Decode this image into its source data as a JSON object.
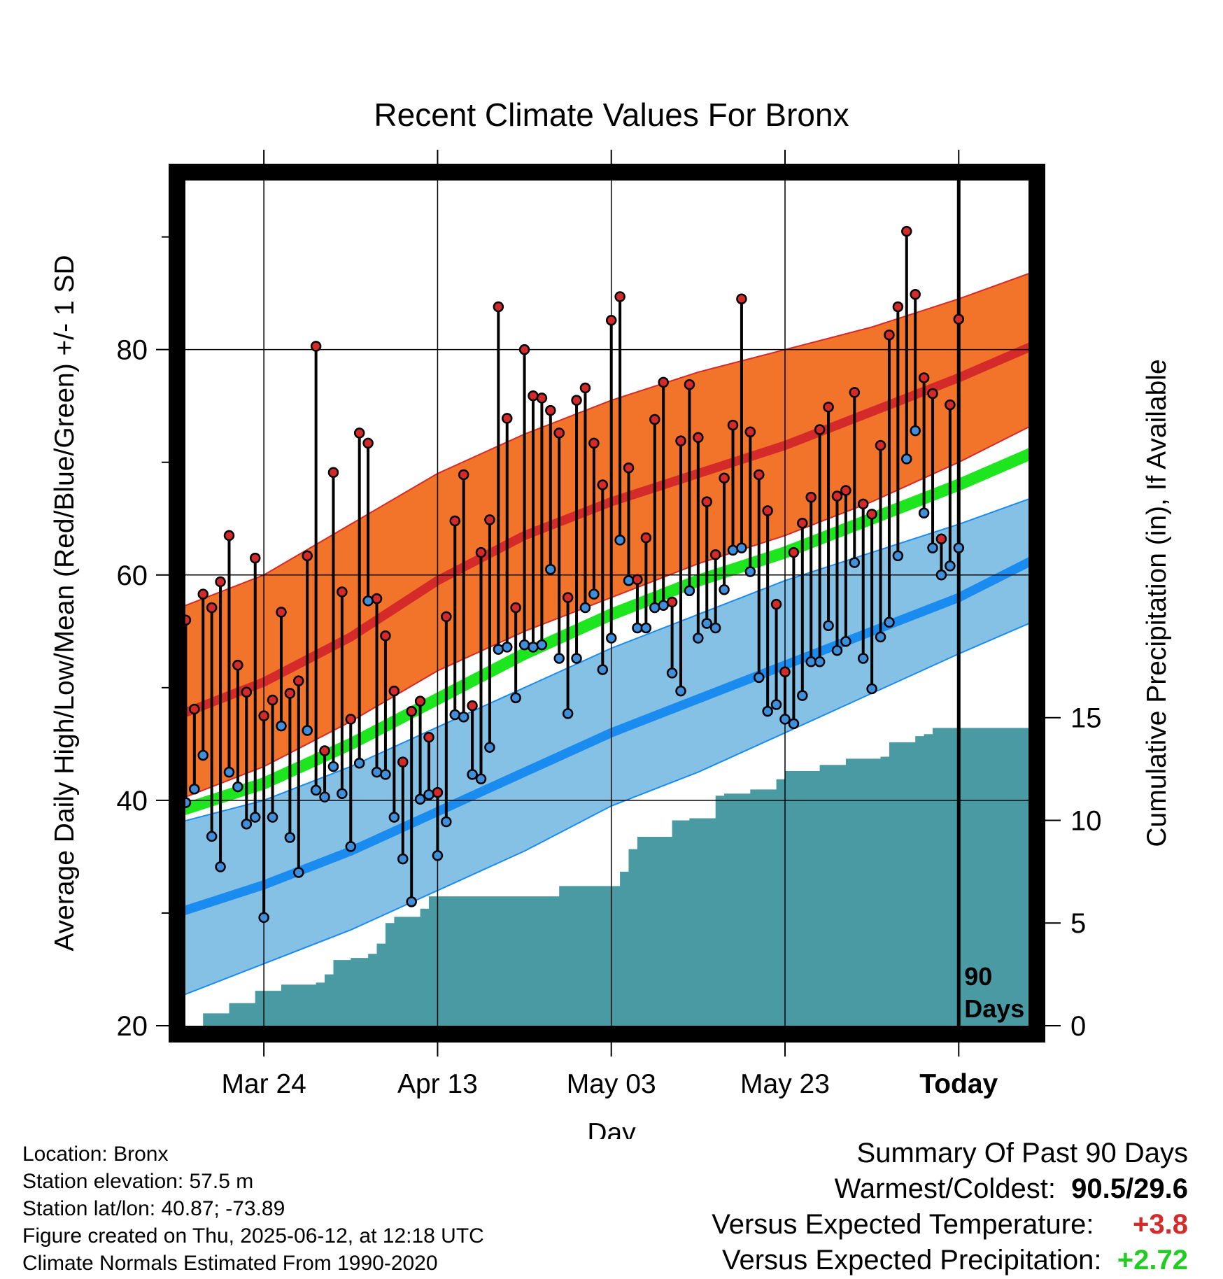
{
  "chart_data": {
    "type": "line",
    "title": "Recent Climate Values For Bronx",
    "xlabel": "Day",
    "ylabel": "Average Daily High/Low/Mean (Red/Blue/Green) +/- 1 SD",
    "y2label": "Cumulative Precipitation (in), If Available",
    "ylim": [
      20,
      96
    ],
    "y2lim": [
      0,
      41.7
    ],
    "yticks": [
      20,
      40,
      60,
      80
    ],
    "y2ticks": [
      0,
      5,
      10,
      15
    ],
    "x_range_days": [
      -90,
      9
    ],
    "xticks": [
      {
        "day": -80,
        "label": "Mar 24"
      },
      {
        "day": -60,
        "label": "Apr 13"
      },
      {
        "day": -40,
        "label": "May 03"
      },
      {
        "day": -20,
        "label": "May 23"
      },
      {
        "day": 0,
        "label": "Today"
      }
    ],
    "today_label": [
      "90",
      "Days"
    ],
    "grid": true,
    "normals": {
      "days": [
        -90,
        -80,
        -70,
        -60,
        -50,
        -40,
        -30,
        -20,
        -10,
        0,
        9
      ],
      "high_mean": [
        47.5,
        50.5,
        54.5,
        59.5,
        63.5,
        66.5,
        69.0,
        71.5,
        74.5,
        77.5,
        80.5
      ],
      "high_upper": [
        57.0,
        60.0,
        64.5,
        69.0,
        72.5,
        75.5,
        78.0,
        80.0,
        82.0,
        84.5,
        87.0
      ],
      "high_lower": [
        40.0,
        43.0,
        47.0,
        51.5,
        55.0,
        58.0,
        61.0,
        63.5,
        66.5,
        70.0,
        73.5
      ],
      "low_mean": [
        30.0,
        32.5,
        35.5,
        39.0,
        42.5,
        46.0,
        49.0,
        52.0,
        55.0,
        58.0,
        61.5
      ],
      "low_upper": [
        38.0,
        40.0,
        43.0,
        46.5,
        50.0,
        53.5,
        56.5,
        59.5,
        62.0,
        64.5,
        67.0
      ],
      "low_lower": [
        22.5,
        25.5,
        28.5,
        32.0,
        35.5,
        39.5,
        42.5,
        46.0,
        49.5,
        53.0,
        56.0
      ],
      "mean": [
        39.0,
        41.5,
        45.0,
        49.0,
        53.0,
        56.5,
        59.5,
        62.0,
        65.0,
        68.0,
        71.0
      ]
    },
    "observed": {
      "days": [
        -89,
        -88,
        -87,
        -86,
        -85,
        -84,
        -83,
        -82,
        -81,
        -80,
        -79,
        -78,
        -77,
        -76,
        -75,
        -74,
        -73,
        -72,
        -71,
        -70,
        -69,
        -68,
        -67,
        -66,
        -65,
        -64,
        -63,
        -62,
        -61,
        -60,
        -59,
        -58,
        -57,
        -56,
        -55,
        -54,
        -53,
        -52,
        -51,
        -50,
        -49,
        -48,
        -47,
        -46,
        -45,
        -44,
        -43,
        -42,
        -41,
        -40,
        -39,
        -38,
        -37,
        -36,
        -35,
        -34,
        -33,
        -32,
        -31,
        -30,
        -29,
        -28,
        -27,
        -26,
        -25,
        -24,
        -23,
        -22,
        -21,
        -20,
        -19,
        -18,
        -17,
        -16,
        -15,
        -14,
        -13,
        -12,
        -11,
        -10,
        -9,
        -8,
        -7,
        -6,
        -5,
        -4,
        -3,
        -2,
        -1,
        0
      ],
      "high": [
        56.0,
        48.1,
        58.3,
        57.1,
        59.4,
        63.5,
        52.0,
        49.6,
        61.5,
        47.5,
        48.9,
        56.7,
        49.5,
        50.6,
        61.7,
        80.3,
        44.4,
        69.1,
        58.5,
        47.2,
        72.6,
        71.7,
        57.9,
        54.6,
        49.7,
        43.4,
        47.9,
        48.8,
        45.6,
        40.7,
        56.3,
        64.8,
        68.9,
        48.4,
        62.0,
        64.9,
        83.8,
        73.9,
        57.1,
        80.0,
        75.9,
        75.7,
        74.6,
        72.6,
        58.0,
        75.5,
        76.6,
        71.7,
        68.0,
        82.6,
        84.7,
        69.5,
        59.6,
        63.3,
        73.8,
        77.1,
        57.6,
        71.9,
        76.9,
        72.2,
        66.5,
        61.8,
        68.6,
        73.3,
        84.5,
        72.7,
        68.9,
        65.7,
        57.4,
        51.4,
        62.0,
        64.6,
        66.9,
        72.9,
        74.9,
        67.0,
        67.5,
        76.2,
        66.3,
        65.4,
        71.5,
        81.3,
        83.8,
        90.5,
        84.9,
        77.5,
        76.1,
        63.2,
        75.1,
        82.7
      ],
      "low": [
        39.8,
        41.0,
        44.0,
        36.8,
        34.1,
        42.5,
        41.2,
        37.9,
        38.5,
        29.6,
        38.5,
        46.6,
        36.7,
        33.6,
        46.2,
        40.9,
        40.3,
        43.0,
        40.6,
        35.9,
        43.3,
        57.7,
        42.5,
        42.3,
        38.5,
        34.8,
        31.0,
        40.1,
        40.5,
        35.1,
        38.1,
        47.6,
        47.4,
        42.3,
        41.9,
        44.7,
        53.4,
        53.6,
        49.1,
        53.8,
        53.6,
        53.8,
        60.5,
        52.6,
        47.7,
        52.6,
        57.1,
        58.3,
        51.6,
        54.4,
        63.1,
        59.5,
        55.3,
        55.3,
        57.1,
        57.3,
        51.3,
        49.7,
        58.6,
        54.4,
        55.7,
        55.3,
        58.7,
        62.2,
        62.4,
        60.3,
        50.9,
        47.9,
        48.5,
        47.2,
        46.8,
        49.3,
        52.3,
        52.3,
        55.5,
        53.3,
        54.1,
        61.1,
        52.6,
        49.9,
        54.5,
        55.8,
        61.7,
        70.3,
        72.8,
        65.5,
        62.4,
        60.0,
        60.8,
        62.4
      ]
    },
    "precip": {
      "days": [
        -90,
        -87,
        -86,
        -84,
        -81,
        -80,
        -78,
        -74,
        -73,
        -72,
        -70,
        -68,
        -67,
        -66,
        -65,
        -63,
        -62,
        -61,
        -60,
        -57,
        -46,
        -45,
        -40,
        -39,
        -38,
        -37,
        -35,
        -33,
        -31,
        -28,
        -27,
        -25,
        -24,
        -21,
        -20,
        -17,
        -16,
        -15,
        -13,
        -12,
        -11,
        -9,
        -8,
        -5,
        -4,
        -3,
        -2,
        -1,
        9
      ],
      "cum": [
        0.0,
        0.6,
        0.6,
        1.1,
        1.7,
        1.7,
        2.0,
        2.1,
        2.5,
        3.2,
        3.3,
        3.5,
        4.0,
        5.0,
        5.3,
        5.3,
        5.7,
        6.3,
        6.3,
        6.3,
        6.8,
        6.8,
        6.8,
        7.5,
        8.6,
        9.2,
        9.2,
        10.0,
        10.1,
        11.2,
        11.3,
        11.3,
        11.5,
        12.0,
        12.4,
        12.4,
        12.7,
        12.7,
        13.0,
        13.0,
        13.0,
        13.1,
        13.8,
        14.1,
        14.2,
        14.5,
        14.5,
        14.5,
        14.5
      ]
    },
    "colors": {
      "high_band": "#f2742a",
      "high_mean": "#d42a2a",
      "low_band": "#85c0e5",
      "low_mean": "#1a8cf0",
      "mean": "#1ee61e",
      "precip": "#4a9aa3",
      "high_dot": "#d42a2a",
      "low_dot": "#3f8fdc"
    }
  },
  "info": {
    "location": "Location: Bronx",
    "elevation": "Station elevation: 57.5 m",
    "latlon": "Station lat/lon: 40.87; -73.89",
    "created": "Figure created on Thu, 2025-06-12, at 12:18 UTC",
    "normals": "Climate Normals Estimated From 1990-2020"
  },
  "summary": {
    "heading": "Summary Of Past 90 Days",
    "warmest_label": "Warmest/Coldest:",
    "warmest_value": "90.5/29.6",
    "temp_label": "Versus Expected Temperature:",
    "temp_value": "+3.8",
    "precip_label": "Versus Expected Precipitation:",
    "precip_value": "+2.72"
  }
}
